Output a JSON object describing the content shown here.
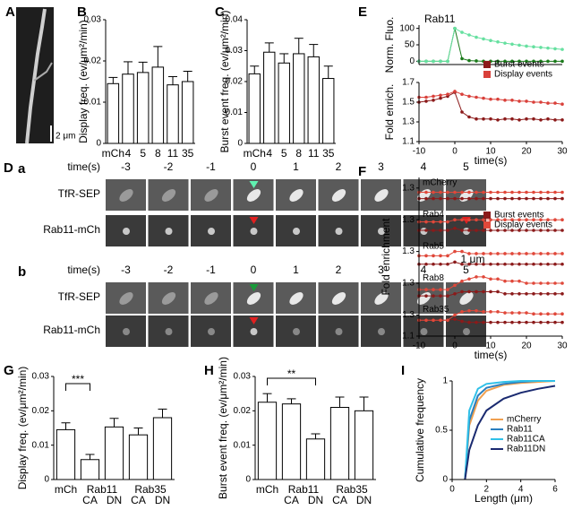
{
  "panel_labels": [
    "A",
    "B",
    "C",
    "D",
    "E",
    "F",
    "G",
    "H",
    "I"
  ],
  "panel_a": {
    "scale_bar": "2 μm"
  },
  "panel_d": {
    "sub_labels": [
      "a",
      "b"
    ],
    "time_label": "time(s)",
    "times": [
      -3,
      -2,
      -1,
      0,
      1,
      2,
      3,
      4,
      5
    ],
    "rows": [
      "TfR-SEP",
      "Rab11-mCh"
    ],
    "scale_bar": "1 μm"
  },
  "chart_data": [
    {
      "type": "bar",
      "ylabel": "Display freq. (ev/μm²/min)",
      "categories": [
        "mCh",
        "4",
        "5",
        "8",
        "11",
        "35"
      ],
      "values": [
        0.0145,
        0.0168,
        0.0172,
        0.0185,
        0.0142,
        0.015
      ],
      "errors": [
        0.0015,
        0.003,
        0.0025,
        0.005,
        0.002,
        0.0025
      ],
      "ylim": [
        0,
        0.03
      ],
      "yticks": [
        0,
        0.01,
        0.02,
        0.03
      ],
      "color": "#ffffff"
    },
    {
      "type": "bar",
      "ylabel": "Burst event freq. (ev/μm²/min)",
      "categories": [
        "mCh",
        "4",
        "5",
        "8",
        "11",
        "35"
      ],
      "values": [
        0.0225,
        0.0295,
        0.026,
        0.029,
        0.028,
        0.021
      ],
      "errors": [
        0.0025,
        0.003,
        0.003,
        0.005,
        0.004,
        0.004
      ],
      "ylim": [
        0,
        0.04
      ],
      "yticks": [
        0,
        0.01,
        0.02,
        0.03,
        0.04
      ],
      "color": "#ffffff"
    },
    {
      "type": "line",
      "title": "Rab11",
      "ylabel": "Norm. Fluo.",
      "xlim": [
        -10,
        30
      ],
      "ylim": [
        -10,
        110
      ],
      "yticks": [
        0,
        50,
        100
      ],
      "markers": true,
      "x": [
        -10,
        -8,
        -6,
        -4,
        -2,
        0,
        2,
        4,
        6,
        8,
        10,
        12,
        14,
        16,
        18,
        20,
        22,
        24,
        26,
        28,
        30
      ],
      "series": [
        {
          "name": "Burst events",
          "color": "#1a7a1a",
          "values": [
            0,
            0,
            0,
            0,
            0,
            100,
            8,
            2,
            1,
            0,
            0,
            0,
            0,
            0,
            0,
            0,
            0,
            0,
            0,
            0,
            0
          ]
        },
        {
          "name": "Display events",
          "color": "#66e0a0",
          "values": [
            0,
            0,
            0,
            0,
            0,
            100,
            88,
            80,
            73,
            68,
            63,
            59,
            55,
            52,
            49,
            46,
            44,
            42,
            40,
            38,
            36
          ]
        }
      ]
    },
    {
      "type": "line",
      "ylabel": "Fold enrich.",
      "xlabel": "time(s)",
      "xlim": [
        -10,
        30
      ],
      "xticks": [
        -10,
        0,
        10,
        20,
        30
      ],
      "ylim": [
        1.1,
        1.7
      ],
      "yticks": [
        1.1,
        1.3,
        1.5,
        1.7
      ],
      "markers": true,
      "legend": true,
      "x": [
        -10,
        -8,
        -6,
        -4,
        -2,
        0,
        2,
        4,
        6,
        8,
        10,
        12,
        14,
        16,
        18,
        20,
        22,
        24,
        26,
        28,
        30
      ],
      "series": [
        {
          "name": "Burst events",
          "color": "#8b1a1a",
          "values": [
            1.5,
            1.51,
            1.52,
            1.54,
            1.56,
            1.6,
            1.4,
            1.35,
            1.33,
            1.33,
            1.33,
            1.32,
            1.33,
            1.33,
            1.32,
            1.33,
            1.33,
            1.32,
            1.33,
            1.32,
            1.32
          ]
        },
        {
          "name": "Display events",
          "color": "#d9403a",
          "values": [
            1.55,
            1.55,
            1.56,
            1.57,
            1.58,
            1.61,
            1.58,
            1.56,
            1.55,
            1.54,
            1.53,
            1.53,
            1.52,
            1.52,
            1.51,
            1.51,
            1.5,
            1.5,
            1.49,
            1.49,
            1.48
          ]
        }
      ]
    },
    {
      "type": "line",
      "ylabel": "Fold enrichment",
      "xlabel": "time(s)",
      "xlim": [
        -10,
        30
      ],
      "xticks": [
        -10,
        0,
        10,
        20,
        30
      ],
      "markers": true,
      "legend": true,
      "x": [
        -10,
        -8,
        -6,
        -4,
        -2,
        0,
        2,
        4,
        6,
        8,
        10,
        12,
        14,
        16,
        18,
        20,
        22,
        24,
        26,
        28,
        30
      ],
      "panels": [
        {
          "name": "mCherry",
          "ylim": [
            1.2,
            1.35
          ],
          "yticks": [
            1.3
          ],
          "series": [
            {
              "name": "Burst events",
              "color": "#8b1a1a",
              "values": [
                1.25,
                1.25,
                1.25,
                1.25,
                1.25,
                1.25,
                1.25,
                1.25,
                1.25,
                1.25,
                1.25,
                1.25,
                1.25,
                1.25,
                1.25,
                1.25,
                1.25,
                1.25,
                1.25,
                1.25,
                1.25
              ]
            },
            {
              "name": "Display events",
              "color": "#e0483a",
              "values": [
                1.28,
                1.28,
                1.28,
                1.28,
                1.28,
                1.28,
                1.28,
                1.28,
                1.28,
                1.28,
                1.28,
                1.28,
                1.28,
                1.28,
                1.28,
                1.28,
                1.28,
                1.28,
                1.28,
                1.28,
                1.28
              ]
            }
          ]
        },
        {
          "name": "Rab4",
          "ylim": [
            1.2,
            1.35
          ],
          "yticks": [
            1.3
          ],
          "series": [
            {
              "name": "Burst events",
              "color": "#8b1a1a",
              "values": [
                1.25,
                1.25,
                1.25,
                1.25,
                1.25,
                1.26,
                1.25,
                1.25,
                1.25,
                1.25,
                1.25,
                1.25,
                1.25,
                1.25,
                1.25,
                1.25,
                1.25,
                1.25,
                1.25,
                1.25,
                1.25
              ]
            },
            {
              "name": "Display events",
              "color": "#e0483a",
              "values": [
                1.29,
                1.29,
                1.29,
                1.29,
                1.29,
                1.3,
                1.3,
                1.3,
                1.3,
                1.3,
                1.3,
                1.3,
                1.3,
                1.3,
                1.3,
                1.3,
                1.3,
                1.3,
                1.3,
                1.3,
                1.3
              ]
            }
          ]
        },
        {
          "name": "Rab5",
          "ylim": [
            1.2,
            1.35
          ],
          "yticks": [
            1.3
          ],
          "series": [
            {
              "name": "Burst events",
              "color": "#8b1a1a",
              "values": [
                1.24,
                1.24,
                1.24,
                1.24,
                1.24,
                1.25,
                1.24,
                1.24,
                1.24,
                1.24,
                1.24,
                1.24,
                1.24,
                1.24,
                1.24,
                1.24,
                1.24,
                1.24,
                1.24,
                1.24,
                1.24
              ]
            },
            {
              "name": "Display events",
              "color": "#e0483a",
              "values": [
                1.28,
                1.28,
                1.28,
                1.28,
                1.28,
                1.3,
                1.3,
                1.29,
                1.29,
                1.29,
                1.29,
                1.29,
                1.29,
                1.29,
                1.29,
                1.29,
                1.29,
                1.29,
                1.29,
                1.29,
                1.29
              ]
            }
          ]
        },
        {
          "name": "Rab8",
          "ylim": [
            1.2,
            1.35
          ],
          "yticks": [
            1.3
          ],
          "series": [
            {
              "name": "Burst events",
              "color": "#8b1a1a",
              "values": [
                1.24,
                1.24,
                1.24,
                1.24,
                1.24,
                1.25,
                1.26,
                1.26,
                1.26,
                1.26,
                1.26,
                1.26,
                1.25,
                1.25,
                1.25,
                1.25,
                1.25,
                1.25,
                1.25,
                1.25,
                1.25
              ]
            },
            {
              "name": "Display events",
              "color": "#e0483a",
              "values": [
                1.27,
                1.27,
                1.27,
                1.27,
                1.27,
                1.29,
                1.31,
                1.32,
                1.33,
                1.33,
                1.32,
                1.32,
                1.31,
                1.31,
                1.31,
                1.3,
                1.3,
                1.3,
                1.3,
                1.3,
                1.3
              ]
            }
          ]
        },
        {
          "name": "Rab35",
          "ylim": [
            1.1,
            1.4
          ],
          "yticks": [
            1.1,
            1.3
          ],
          "series": [
            {
              "name": "Burst events",
              "color": "#8b1a1a",
              "values": [
                1.25,
                1.25,
                1.25,
                1.25,
                1.25,
                1.26,
                1.24,
                1.23,
                1.23,
                1.23,
                1.23,
                1.23,
                1.23,
                1.23,
                1.23,
                1.23,
                1.23,
                1.23,
                1.23,
                1.23,
                1.23
              ]
            },
            {
              "name": "Display events",
              "color": "#e0483a",
              "values": [
                1.25,
                1.25,
                1.25,
                1.25,
                1.25,
                1.3,
                1.33,
                1.34,
                1.34,
                1.33,
                1.33,
                1.33,
                1.32,
                1.32,
                1.32,
                1.32,
                1.31,
                1.31,
                1.31,
                1.31,
                1.31
              ]
            }
          ]
        }
      ]
    },
    {
      "type": "bar",
      "ylabel": "Display freq. (ev/μm²/min)",
      "categories": [
        "mCh",
        "CA",
        "DN",
        "CA",
        "DN"
      ],
      "group_labels": [
        "Rab11",
        "Rab35"
      ],
      "values": [
        0.0145,
        0.0058,
        0.0153,
        0.013,
        0.018
      ],
      "errors": [
        0.002,
        0.0015,
        0.0025,
        0.002,
        0.0025
      ],
      "ylim": [
        0,
        0.03
      ],
      "yticks": [
        0,
        0.01,
        0.02,
        0.03
      ],
      "color": "#ffffff",
      "annotations": [
        "***"
      ]
    },
    {
      "type": "bar",
      "ylabel": "Burst event freq. (ev/μm²/min)",
      "categories": [
        "mCh",
        "CA",
        "DN",
        "CA",
        "DN"
      ],
      "group_labels": [
        "Rab11",
        "Rab35"
      ],
      "values": [
        0.0225,
        0.022,
        0.0118,
        0.021,
        0.02
      ],
      "errors": [
        0.0025,
        0.0015,
        0.0015,
        0.003,
        0.004
      ],
      "ylim": [
        0,
        0.03
      ],
      "yticks": [
        0,
        0.01,
        0.02,
        0.03
      ],
      "color": "#ffffff",
      "annotations": [
        "**"
      ]
    },
    {
      "type": "line",
      "ylabel": "Cumulative frequency",
      "xlabel": "Length (μm)",
      "xlim": [
        0,
        6
      ],
      "xticks": [
        0,
        2,
        4,
        6
      ],
      "ylim": [
        0,
        1
      ],
      "yticks": [
        0,
        0.5,
        1
      ],
      "legend": true,
      "x": [
        0.75,
        1,
        1.5,
        2,
        3,
        4,
        5,
        6
      ],
      "series": [
        {
          "name": "mCherry",
          "color": "#f0a050",
          "values": [
            0,
            0.55,
            0.8,
            0.9,
            0.96,
            0.98,
            0.99,
            1
          ]
        },
        {
          "name": "Rab11",
          "color": "#2a7fc0",
          "values": [
            0,
            0.6,
            0.85,
            0.93,
            0.97,
            0.99,
            1,
            1
          ]
        },
        {
          "name": "Rab11CA",
          "color": "#30c0e8",
          "values": [
            0,
            0.7,
            0.92,
            0.97,
            0.99,
            1,
            1,
            1
          ]
        },
        {
          "name": "Rab11DN",
          "color": "#1a2a70",
          "values": [
            0,
            0.3,
            0.55,
            0.7,
            0.82,
            0.88,
            0.92,
            0.95
          ]
        }
      ]
    }
  ]
}
